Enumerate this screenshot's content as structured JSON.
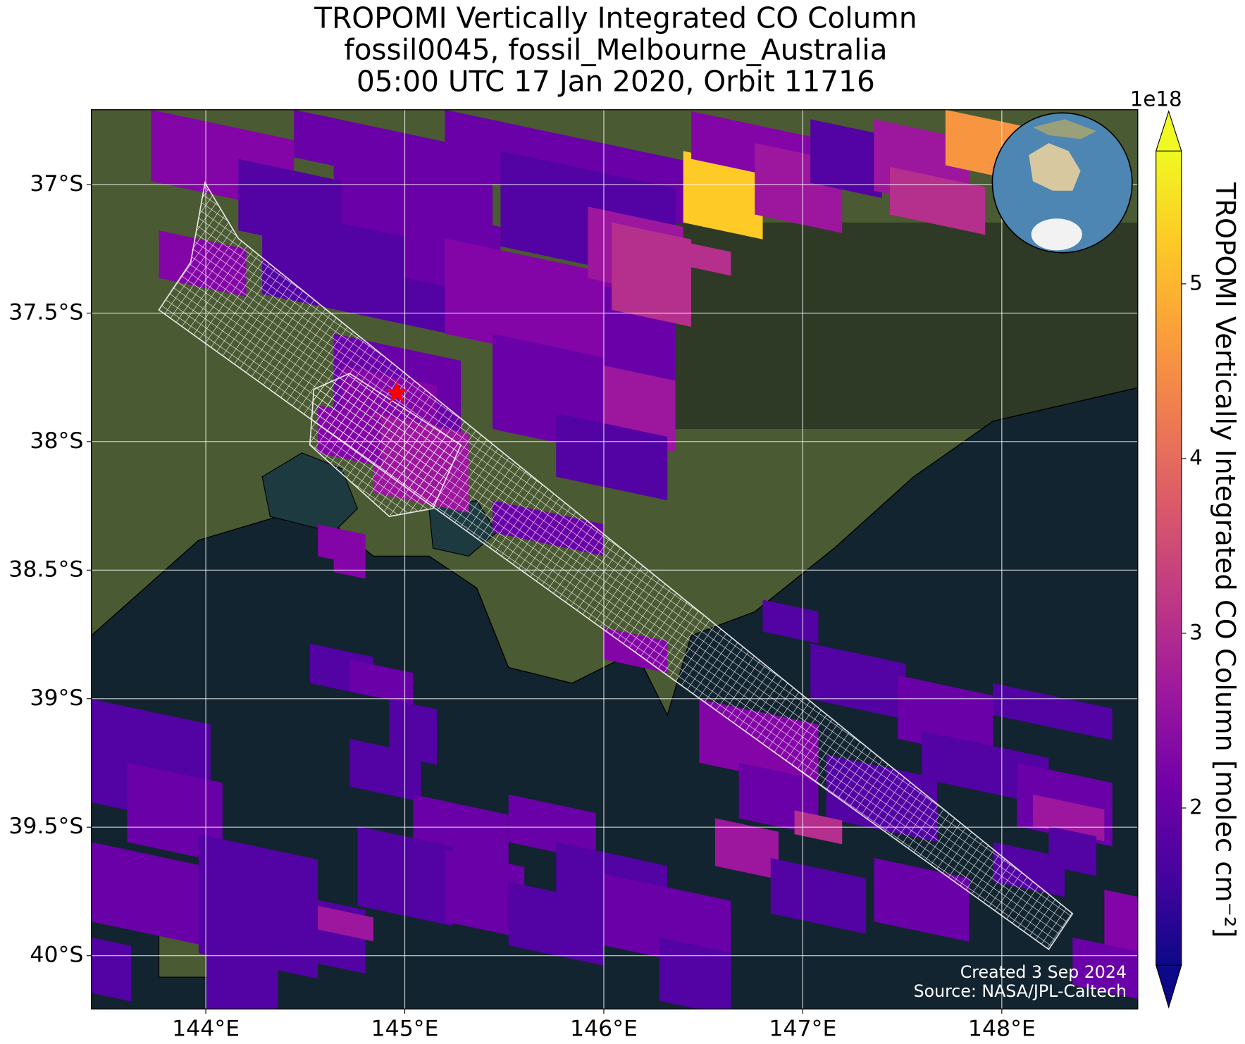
{
  "title": [
    "TROPOMI Vertically Integrated CO Column",
    "fossil0045, fossil_Melbourne_Australia",
    "05:00 UTC 17 Jan 2020, Orbit 11716"
  ],
  "map": {
    "xlim": [
      143.425,
      148.683
    ],
    "ylim": [
      -40.207,
      -36.709
    ],
    "grid": true,
    "xticks": [
      {
        "value": 144,
        "label": "144°E"
      },
      {
        "value": 145,
        "label": "145°E"
      },
      {
        "value": 146,
        "label": "146°E"
      },
      {
        "value": 147,
        "label": "147°E"
      },
      {
        "value": 148,
        "label": "148°E"
      }
    ],
    "yticks": [
      {
        "value": -37,
        "label": "37°S"
      },
      {
        "value": -37.5,
        "label": "37.5°S"
      },
      {
        "value": -38,
        "label": "38°S"
      },
      {
        "value": -38.5,
        "label": "38.5°S"
      },
      {
        "value": -39,
        "label": "39°S"
      },
      {
        "value": -39.5,
        "label": "39.5°S"
      },
      {
        "value": -40,
        "label": "40°S"
      }
    ],
    "site": {
      "lon": 144.96,
      "lat": -37.81,
      "color": "#ff0000"
    }
  },
  "colorbar": {
    "lim": [
      1.1,
      5.76
    ],
    "ticks": [
      2,
      3,
      4,
      5
    ],
    "exponent_label": "1e18",
    "label": "TROPOMI Vertically Integrated CO Column [molec cm⁻²]",
    "colormap": "plasma"
  },
  "annotations": [
    "Created 3 Sep 2024",
    "Source: NASA/JPL-Caltech"
  ]
}
